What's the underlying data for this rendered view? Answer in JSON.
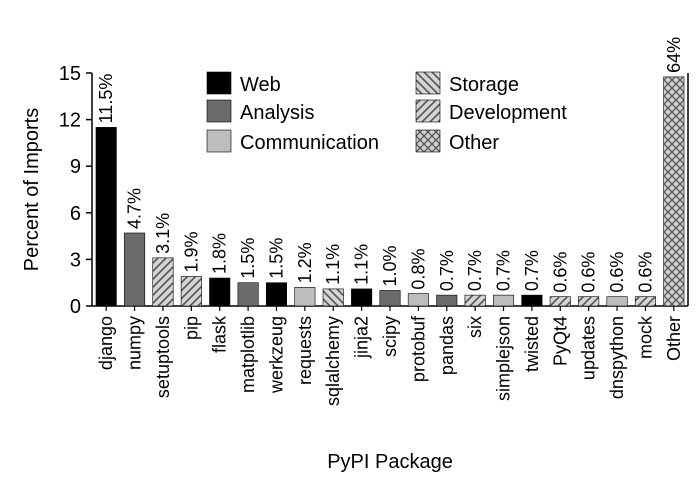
{
  "chart_data": {
    "type": "bar",
    "xlabel": "PyPI Package",
    "ylabel": "Percent of Imports",
    "ylim": [
      0,
      15
    ],
    "yticks": [
      0,
      3,
      6,
      9,
      12,
      15
    ],
    "grid": false,
    "legend_position": "top",
    "categories": [
      "django",
      "numpy",
      "setuptools",
      "pip",
      "flask",
      "matplotlib",
      "werkzeug",
      "requests",
      "sqlalchemy",
      "jinja2",
      "scipy",
      "protobuf",
      "pandas",
      "six",
      "simplejson",
      "twisted",
      "PyQt4",
      "updates",
      "dnspython",
      "mock",
      "Other"
    ],
    "values": [
      11.5,
      4.7,
      3.1,
      1.9,
      1.8,
      1.5,
      1.5,
      1.2,
      1.1,
      1.1,
      1.0,
      0.8,
      0.7,
      0.7,
      0.7,
      0.7,
      0.6,
      0.6,
      0.6,
      0.6,
      64
    ],
    "value_labels": [
      "11.5%",
      "4.7%",
      "3.1%",
      "1.9%",
      "1.8%",
      "1.5%",
      "1.5%",
      "1.2%",
      "1.1%",
      "1.1%",
      "1.0%",
      "0.8%",
      "0.7%",
      "0.7%",
      "0.7%",
      "0.7%",
      "0.6%",
      "0.6%",
      "0.6%",
      "0.6%",
      "64%"
    ],
    "groups": [
      "Web",
      "Analysis",
      "Development",
      "Development",
      "Web",
      "Analysis",
      "Web",
      "Communication",
      "Storage",
      "Web",
      "Analysis",
      "Communication",
      "Analysis",
      "Development",
      "Communication",
      "Web",
      "Development",
      "Development",
      "Communication",
      "Development",
      "Other"
    ],
    "legend": [
      {
        "name": "Web",
        "color": "#000000",
        "pattern": "solid"
      },
      {
        "name": "Analysis",
        "color": "#6b6b6b",
        "pattern": "solid"
      },
      {
        "name": "Communication",
        "color": "#bdbdbd",
        "pattern": "solid"
      },
      {
        "name": "Storage",
        "color": "#9a9a9a",
        "pattern": "backslash"
      },
      {
        "name": "Development",
        "color": "#9a9a9a",
        "pattern": "slash"
      },
      {
        "name": "Other",
        "color": "#9a9a9a",
        "pattern": "cross"
      }
    ]
  }
}
